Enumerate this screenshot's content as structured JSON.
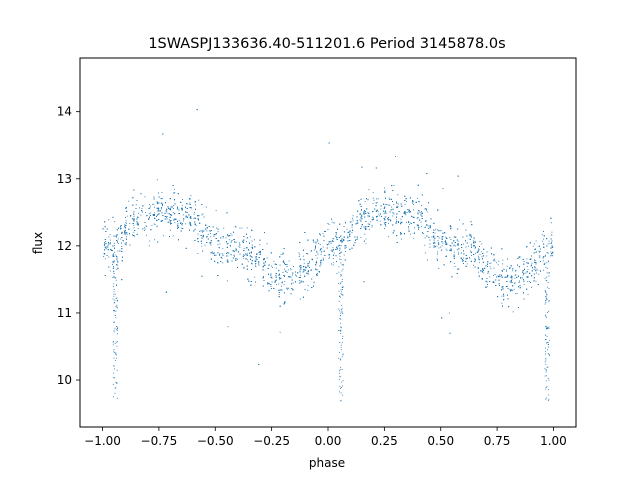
{
  "chart_data": {
    "type": "scatter",
    "title": "1SWASPJ133636.40-511201.6 Period 3145878.0s",
    "xlabel": "phase",
    "ylabel": "flux",
    "xlim": [
      -1.1,
      1.1
    ],
    "ylim": [
      9.3,
      14.8
    ],
    "grid": false,
    "point_color": "#1f77b4",
    "x_ticks": [
      -1.0,
      -0.75,
      -0.5,
      -0.25,
      0.0,
      0.25,
      0.5,
      0.75,
      1.0
    ],
    "x_tick_labels": [
      "−1.00",
      "−0.75",
      "−0.50",
      "−0.25",
      "0.00",
      "0.25",
      "0.50",
      "0.75",
      "1.00"
    ],
    "y_ticks": [
      10,
      11,
      12,
      13,
      14
    ],
    "y_tick_labels": [
      "10",
      "11",
      "12",
      "13",
      "14"
    ],
    "series": [
      {
        "profile": {
          "x": [
            0.0,
            0.05,
            0.1,
            0.15,
            0.2,
            0.25,
            0.3,
            0.35,
            0.4,
            0.45,
            0.5,
            0.55,
            0.6,
            0.65,
            0.7,
            0.75,
            0.8,
            0.85,
            0.9,
            0.95,
            1.0
          ],
          "mean_flux": [
            12.05,
            12.0,
            12.2,
            12.4,
            12.5,
            12.55,
            12.5,
            12.45,
            12.45,
            12.2,
            12.05,
            12.0,
            11.95,
            11.9,
            11.75,
            11.55,
            11.5,
            11.55,
            11.7,
            11.85,
            12.05
          ],
          "spread": 0.45
        },
        "dips": [
          {
            "x": -0.945,
            "low": 9.7
          },
          {
            "x": 0.055,
            "low": 9.6
          },
          {
            "x": 0.97,
            "low": 9.7
          }
        ]
      }
    ]
  }
}
